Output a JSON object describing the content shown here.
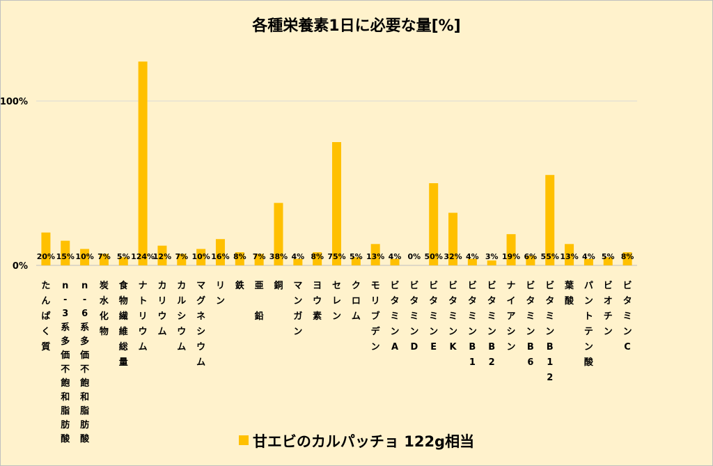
{
  "chart_data": {
    "type": "bar",
    "title": "各種栄養素1日に必要な量[%]",
    "xlabel": "",
    "ylabel": "",
    "ylim": [
      0,
      125
    ],
    "yticks": [
      {
        "value": 0,
        "label": "0%"
      },
      {
        "value": 100,
        "label": "100%"
      }
    ],
    "grid": true,
    "legend_position": "bottom",
    "bar_color": "#FFC000",
    "background_color": "#FFF2CC",
    "categories": [
      "たんぱく質",
      "n-3系多価不飽和脂肪酸",
      "n-6系多価不飽和脂肪酸",
      "炭水化物",
      "食物繊維総量",
      "ナトリウム",
      "カリウム",
      "カルシウム",
      "マグネシウム",
      "リン",
      "鉄",
      "亜 鉛",
      "銅",
      "マンガン",
      "ヨウ素",
      "セレン",
      "クロム",
      "モリブデン",
      "ビタミンA",
      "ビタミンD",
      "ビタミンE",
      "ビタミンK",
      "ビタミンB1",
      "ビタミンB2",
      "ナイアシン",
      "ビタミンB6",
      "ビタミンB12",
      "葉酸",
      "パントテン酸",
      "ビオチン",
      "ビタミンC"
    ],
    "series": [
      {
        "name": "甘エビのカルパッチョ 122g相当",
        "values": [
          20,
          15,
          10,
          7,
          5,
          124,
          12,
          7,
          10,
          16,
          8,
          7,
          38,
          4,
          8,
          75,
          5,
          13,
          4,
          0,
          50,
          32,
          4,
          3,
          19,
          6,
          55,
          13,
          4,
          5,
          8
        ],
        "labels": [
          "20%",
          "15%",
          "10%",
          "7%",
          "5%",
          "124%",
          "12%",
          "7%",
          "10%",
          "16%",
          "8%",
          "7%",
          "38%",
          "4%",
          "8%",
          "75%",
          "5%",
          "13%",
          "4%",
          "0%",
          "50%",
          "32%",
          "4%",
          "3%",
          "19%",
          "6%",
          "55%",
          "13%",
          "4%",
          "5%",
          "8%"
        ]
      }
    ]
  }
}
